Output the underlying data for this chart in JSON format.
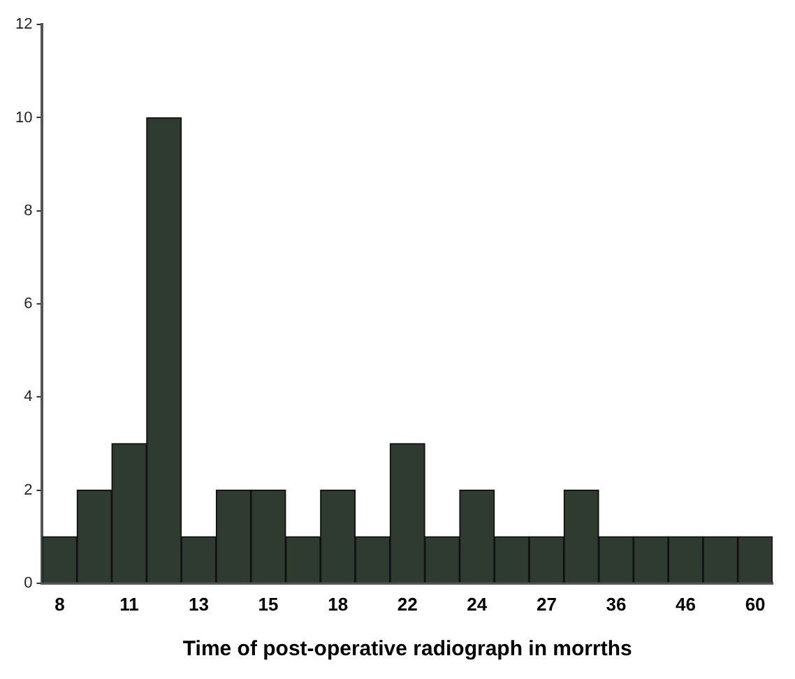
{
  "chart_data": {
    "type": "bar",
    "xlabel": "Time of post-operative radiograph in morrths",
    "categories": [
      "8",
      null,
      "11",
      null,
      "13",
      null,
      "15",
      null,
      "18",
      null,
      "22",
      null,
      "24",
      null,
      "27",
      null,
      "36",
      null,
      "46",
      null,
      "60"
    ],
    "values": [
      1,
      2,
      3,
      10,
      1,
      2,
      2,
      1,
      2,
      1,
      3,
      1,
      2,
      1,
      1,
      2,
      1,
      1,
      1,
      1,
      1
    ],
    "color": "#2f3a30",
    "ylim": [
      0,
      12
    ],
    "yticks": [
      0,
      2,
      4,
      6,
      8,
      10,
      12
    ],
    "grid": false,
    "legend": false
  }
}
